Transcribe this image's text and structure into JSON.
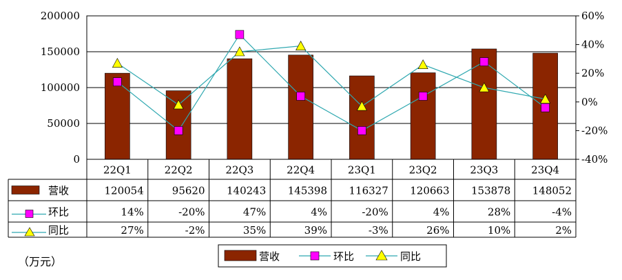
{
  "chart_data": {
    "type": "bar",
    "categories": [
      "22Q1",
      "22Q2",
      "22Q3",
      "22Q4",
      "23Q1",
      "23Q2",
      "23Q3",
      "23Q4"
    ],
    "series": [
      {
        "name": "营收",
        "kind": "bar",
        "axis": "left",
        "values": [
          120054,
          95620,
          140243,
          145398,
          116327,
          120663,
          153878,
          148052
        ],
        "labels": [
          "120054",
          "95620",
          "140243",
          "145398",
          "116327",
          "120663",
          "153878",
          "148052"
        ]
      },
      {
        "name": "环比",
        "kind": "line",
        "marker": "square",
        "axis": "right",
        "values": [
          14,
          -20,
          47,
          4,
          -20,
          4,
          28,
          -4
        ],
        "labels": [
          "14%",
          "-20%",
          "47%",
          "4%",
          "-20%",
          "4%",
          "28%",
          "-4%"
        ]
      },
      {
        "name": "同比",
        "kind": "line",
        "marker": "triangle",
        "axis": "right",
        "values": [
          27,
          -2,
          35,
          39,
          -3,
          26,
          10,
          2
        ],
        "labels": [
          "27%",
          "-2%",
          "35%",
          "39%",
          "-3%",
          "26%",
          "10%",
          "2%"
        ]
      }
    ],
    "y_left": {
      "min": 0,
      "max": 200000,
      "ticks": [
        "0",
        "50000",
        "100000",
        "150000",
        "200000"
      ]
    },
    "y_right": {
      "min": -40,
      "max": 60,
      "ticks": [
        "-40%",
        "-20%",
        "0%",
        "20%",
        "40%",
        "60%"
      ]
    },
    "grid": true,
    "legend": "bottom",
    "unit_label": "（万元）",
    "data_table": true
  },
  "colors": {
    "bar": "#8b2500",
    "line": "#2fa8b0",
    "square_marker": "#ff00ff",
    "triangle_marker": "#ffff00"
  }
}
